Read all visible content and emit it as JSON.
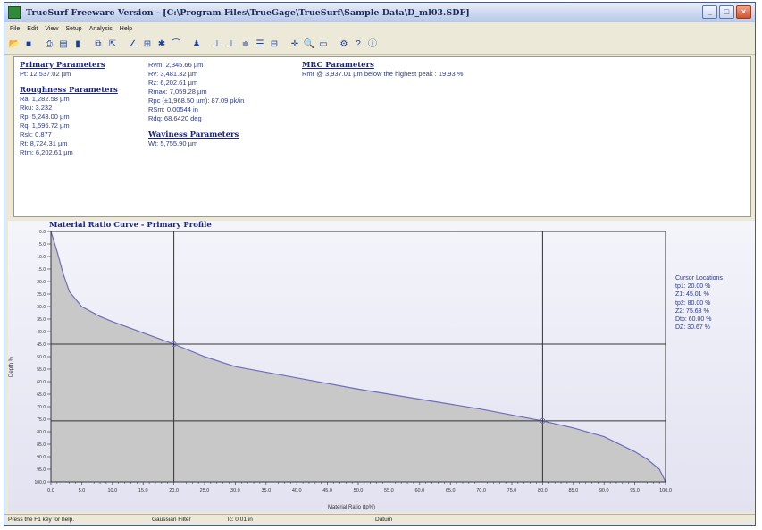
{
  "window": {
    "title": "TrueSurf Freeware Version - [C:\\Program Files\\TrueGage\\TrueSurf\\Sample Data\\D_ml03.SDF]",
    "controls": [
      "_",
      "□",
      "×"
    ]
  },
  "menu": [
    "File",
    "Edit",
    "View",
    "Setup",
    "Analysis",
    "Help"
  ],
  "toolbar": [
    "open-icon",
    "save-icon",
    "print-icon",
    "print-preview-icon",
    "folder-icon",
    "copy-icon",
    "export-icon",
    "line-tool-icon",
    "measure-icon",
    "profile-icon",
    "curve-icon",
    "person-icon",
    "level-icon",
    "level2-icon",
    "level3-icon",
    "levels-icon",
    "grid-icon",
    "crosshair-icon",
    "zoom-icon",
    "window-icon",
    "settings-icon",
    "help-icon",
    "about-icon"
  ],
  "params": {
    "primary": {
      "header": "Primary Parameters",
      "lines": [
        "Pt: 12,537.02 µm"
      ]
    },
    "roughness": {
      "header": "Roughness Parameters",
      "lines": [
        "Ra: 1,282.58 µm",
        "Rku: 3.232",
        "Rp: 5,243.00 µm",
        "Rq: 1,596.72 µm",
        "Rsk: 0.877",
        "Rt: 8,724.31 µm",
        "Rtm: 6,202.61 µm"
      ]
    },
    "col2": {
      "lines": [
        "Rvm: 2,345.66 µm",
        "Rv: 3,481.32 µm",
        "Rz: 6,202.61 µm",
        "Rmax: 7,059.28 µm",
        "Rpc (±1,968.50 µm): 87.09 pk/in",
        "RSm: 0.00544 in",
        "Rdq: 68.6420 deg"
      ]
    },
    "waviness": {
      "header": "Waviness Parameters",
      "lines": [
        "Wt: 5,755.90 µm"
      ]
    },
    "mrc": {
      "header": "MRC Parameters",
      "lines": [
        "Rmr @ 3,937.01 µm below the highest peak : 19.93 %"
      ]
    }
  },
  "chart": {
    "title": "Material Ratio Curve - Primary Profile",
    "xlabel": "Material Ratio (tp%)",
    "ylabel": "Depth %",
    "gauge": {
      "header": "Cursor Locations",
      "lines": [
        "tp1: 20.00 %",
        "Z1: 45.01 %",
        "tp2: 80.00 %",
        "Z2: 75.68 %",
        "Dtp: 60.00 %",
        "DZ: 30.67 %"
      ]
    }
  },
  "chart_data": {
    "type": "area",
    "title": "Material Ratio Curve - Primary Profile",
    "xlabel": "Material Ratio (tp%)",
    "ylabel": "Depth %",
    "xlim": [
      0,
      100
    ],
    "ylim": [
      0,
      100
    ],
    "y_inverted": true,
    "x_ticks": [
      "0.0",
      "5.0",
      "10.0",
      "15.0",
      "20.0",
      "25.0",
      "30.0",
      "35.0",
      "40.0",
      "45.0",
      "50.0",
      "55.0",
      "60.0",
      "65.0",
      "70.0",
      "75.0",
      "80.0",
      "85.0",
      "90.0",
      "95.0",
      "100.0"
    ],
    "y_ticks": [
      "0.0",
      "5.0",
      "10.0",
      "15.0",
      "20.0",
      "25.0",
      "30.0",
      "35.0",
      "40.0",
      "45.0",
      "50.0",
      "55.0",
      "60.0",
      "65.0",
      "70.0",
      "75.0",
      "80.0",
      "85.0",
      "90.0",
      "95.0",
      "100.0"
    ],
    "x": [
      0,
      1,
      2,
      3,
      5,
      8,
      10,
      15,
      20,
      25,
      30,
      40,
      50,
      60,
      70,
      80,
      85,
      90,
      95,
      97,
      99,
      100
    ],
    "y": [
      0,
      8,
      17,
      24,
      30,
      34,
      36,
      40.5,
      45.01,
      50,
      54,
      58.5,
      63,
      67,
      71,
      75.68,
      78.5,
      82,
      88,
      91,
      95,
      100
    ],
    "cursors": {
      "tp1": 20,
      "Z1": 45.01,
      "tp2": 80,
      "Z2": 75.68
    },
    "colors": {
      "fill": "#c8c8c8",
      "line": "#6f6cc2",
      "cursor": "#333333"
    }
  },
  "status": {
    "help": "Press the F1 key for help.",
    "filter": "Gaussian Filter",
    "lc": "lc: 0.01 in",
    "datum": "Datum"
  }
}
